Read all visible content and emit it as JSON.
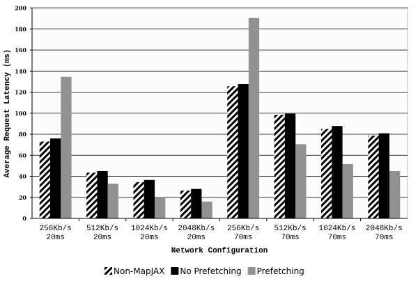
{
  "chart_data": {
    "type": "bar",
    "title": "",
    "xlabel": "Network Configuration",
    "ylabel": "Average Request Latency (ms)",
    "ylim": [
      0,
      200
    ],
    "yticks": [
      0,
      20,
      40,
      60,
      80,
      100,
      120,
      140,
      160,
      180,
      200
    ],
    "grid": true,
    "legend_position": "bottom",
    "categories": [
      [
        "256Kb/s",
        "20ms"
      ],
      [
        "512Kb/s",
        "20ms"
      ],
      [
        "1024Kb/s",
        "20ms"
      ],
      [
        "2048Kb/s",
        "20ms"
      ],
      [
        "256Kb/s",
        "70ms"
      ],
      [
        "512Kb/s",
        "70ms"
      ],
      [
        "1024Kb/s",
        "70ms"
      ],
      [
        "2048Kb/s",
        "70ms"
      ]
    ],
    "series": [
      {
        "name": "Non-MapJAX",
        "style": "hatch",
        "color": "#000000",
        "values": [
          73,
          43.5,
          34.5,
          26.5,
          125.5,
          98.5,
          85,
          78.7
        ]
      },
      {
        "name": "No Prefetching",
        "style": "solid",
        "color": "#000000",
        "values": [
          76,
          45,
          36.5,
          28,
          127.6,
          99.6,
          87.8,
          80.9
        ]
      },
      {
        "name": "Prefetching",
        "style": "solid",
        "color": "#919191",
        "values": [
          134.5,
          33,
          20.5,
          16,
          190.5,
          70.5,
          51.6,
          45
        ]
      }
    ]
  }
}
